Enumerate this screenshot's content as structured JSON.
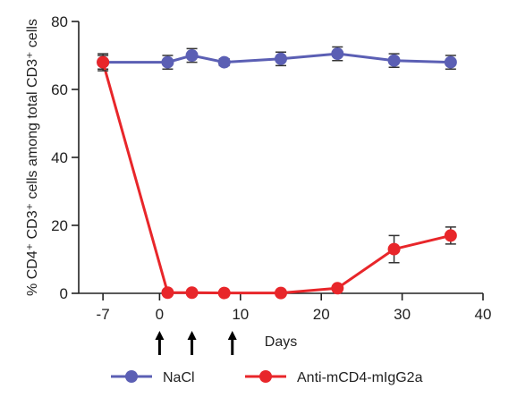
{
  "chart_data": {
    "type": "line",
    "xlabel": "Days",
    "ylabel": "% CD4⁺ CD3⁺ cells among total CD3⁺ cells",
    "xlim": [
      -10,
      40
    ],
    "ylim": [
      0,
      80
    ],
    "xticks": [
      -7,
      0,
      10,
      20,
      30,
      40
    ],
    "xtick_labels": [
      "-7",
      "0",
      "10",
      "20",
      "30",
      "40"
    ],
    "yticks": [
      0,
      20,
      40,
      60,
      80
    ],
    "ytick_labels": [
      "0",
      "20",
      "40",
      "60",
      "80"
    ],
    "grid": false,
    "legend_position": "bottom",
    "series": [
      {
        "name": "NaCl",
        "color": "#5b5fb4",
        "points": [
          {
            "x": -7,
            "y": 68,
            "err": 2.0
          },
          {
            "x": 1,
            "y": 68,
            "err": 2.0
          },
          {
            "x": 4,
            "y": 70,
            "err": 2.0
          },
          {
            "x": 8,
            "y": 68,
            "err": 1.0
          },
          {
            "x": 15,
            "y": 69,
            "err": 2.0
          },
          {
            "x": 22,
            "y": 70.5,
            "err": 2.0
          },
          {
            "x": 29,
            "y": 68.5,
            "err": 2.0
          },
          {
            "x": 36,
            "y": 68,
            "err": 2.0
          }
        ]
      },
      {
        "name": "Anti-mCD4-mIgG2a",
        "color": "#e8262a",
        "points": [
          {
            "x": -7,
            "y": 68,
            "err": 2.5
          },
          {
            "x": 1,
            "y": 0.2,
            "err": 0
          },
          {
            "x": 4,
            "y": 0.2,
            "err": 0
          },
          {
            "x": 8,
            "y": 0.1,
            "err": 0
          },
          {
            "x": 15,
            "y": 0.1,
            "err": 0
          },
          {
            "x": 22,
            "y": 1.5,
            "err": 0
          },
          {
            "x": 29,
            "y": 13,
            "err": 4.0
          },
          {
            "x": 36,
            "y": 17,
            "err": 2.5
          }
        ]
      }
    ],
    "annotations": {
      "treatment_arrows_x": [
        0,
        4,
        9
      ]
    }
  }
}
